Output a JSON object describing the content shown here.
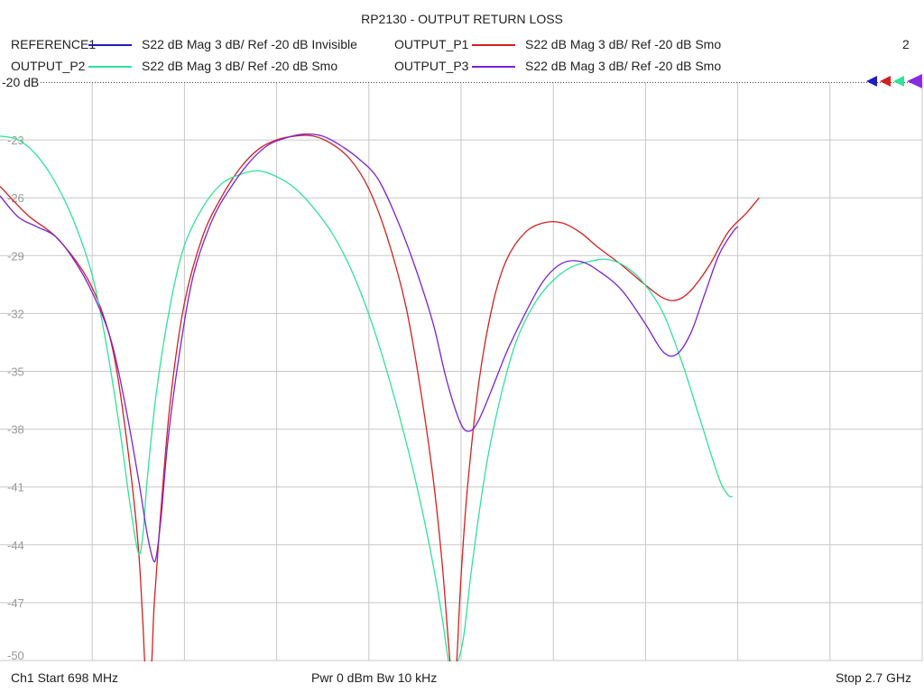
{
  "chart_data": {
    "type": "line",
    "title": "RP2130 - OUTPUT RETURN LOSS",
    "xlabel": "",
    "ylabel": "",
    "x_range_ghz": [
      0.698,
      2.7
    ],
    "ylim": [
      -50,
      -20
    ],
    "yticks": [
      -20,
      -23,
      -26,
      -29,
      -32,
      -35,
      -38,
      -41,
      -44,
      -47,
      -50
    ],
    "ref_label": "-20 dB",
    "grid": true,
    "x_divisions": 10,
    "channel_number": "2",
    "legend": [
      {
        "name": "REFERENCE1",
        "desc": "S22  dB Mag  3 dB/ Ref -20 dB  Invisible",
        "color": "#1f1fbf"
      },
      {
        "name": "OUTPUT_P1",
        "desc": "S22  dB Mag  3 dB/ Ref -20 dB  Smo",
        "color": "#d42020"
      },
      {
        "name": "OUTPUT_P2",
        "desc": "S22  dB Mag  3 dB/ Ref -20 dB  Smo",
        "color": "#2ee39a"
      },
      {
        "name": "OUTPUT_P3",
        "desc": "S22  dB Mag  3 dB/ Ref -20 dB  Smo",
        "color": "#7b22d6"
      }
    ],
    "series": [
      {
        "name": "OUTPUT_P1",
        "color": "#d42020",
        "points": [
          [
            0.698,
            -25.4
          ],
          [
            0.758,
            -26.9
          ],
          [
            0.818,
            -28.0
          ],
          [
            0.878,
            -29.8
          ],
          [
            0.918,
            -31.8
          ],
          [
            0.948,
            -34.5
          ],
          [
            0.978,
            -39.5
          ],
          [
            0.998,
            -44.0
          ],
          [
            1.008,
            -48.0
          ],
          [
            1.014,
            -50.5
          ],
          [
            1.026,
            -50.5
          ],
          [
            1.033,
            -47.0
          ],
          [
            1.048,
            -42.0
          ],
          [
            1.068,
            -36.5
          ],
          [
            1.098,
            -31.5
          ],
          [
            1.138,
            -28.0
          ],
          [
            1.178,
            -26.0
          ],
          [
            1.218,
            -24.5
          ],
          [
            1.258,
            -23.5
          ],
          [
            1.298,
            -23.0
          ],
          [
            1.338,
            -22.8
          ],
          [
            1.378,
            -22.8
          ],
          [
            1.418,
            -23.2
          ],
          [
            1.458,
            -24.0
          ],
          [
            1.498,
            -25.5
          ],
          [
            1.538,
            -28.0
          ],
          [
            1.578,
            -31.5
          ],
          [
            1.608,
            -35.5
          ],
          [
            1.638,
            -40.5
          ],
          [
            1.658,
            -45.0
          ],
          [
            1.673,
            -49.5
          ],
          [
            1.678,
            -50.5
          ],
          [
            1.688,
            -50.5
          ],
          [
            1.698,
            -46.0
          ],
          [
            1.713,
            -41.0
          ],
          [
            1.738,
            -35.5
          ],
          [
            1.768,
            -31.5
          ],
          [
            1.798,
            -29.2
          ],
          [
            1.838,
            -27.8
          ],
          [
            1.878,
            -27.3
          ],
          [
            1.918,
            -27.3
          ],
          [
            1.958,
            -27.8
          ],
          [
            1.998,
            -28.6
          ],
          [
            2.048,
            -29.5
          ],
          [
            2.098,
            -30.5
          ],
          [
            2.138,
            -31.2
          ],
          [
            2.168,
            -31.3
          ],
          [
            2.198,
            -30.8
          ],
          [
            2.238,
            -29.5
          ],
          [
            2.278,
            -27.8
          ],
          [
            2.318,
            -26.8
          ],
          [
            2.346,
            -26.0
          ]
        ]
      },
      {
        "name": "OUTPUT_P2",
        "color": "#2ee39a",
        "points": [
          [
            0.698,
            -22.8
          ],
          [
            0.738,
            -23.0
          ],
          [
            0.778,
            -23.8
          ],
          [
            0.818,
            -25.2
          ],
          [
            0.858,
            -27.2
          ],
          [
            0.898,
            -30.0
          ],
          [
            0.928,
            -33.5
          ],
          [
            0.958,
            -38.0
          ],
          [
            0.978,
            -41.5
          ],
          [
            0.998,
            -44.4
          ],
          [
            1.008,
            -43.5
          ],
          [
            1.018,
            -40.5
          ],
          [
            1.038,
            -36.0
          ],
          [
            1.068,
            -31.5
          ],
          [
            1.098,
            -28.5
          ],
          [
            1.138,
            -26.5
          ],
          [
            1.178,
            -25.3
          ],
          [
            1.218,
            -24.8
          ],
          [
            1.258,
            -24.6
          ],
          [
            1.298,
            -24.9
          ],
          [
            1.338,
            -25.5
          ],
          [
            1.378,
            -26.5
          ],
          [
            1.418,
            -27.8
          ],
          [
            1.458,
            -29.6
          ],
          [
            1.498,
            -32.0
          ],
          [
            1.538,
            -35.0
          ],
          [
            1.578,
            -38.5
          ],
          [
            1.608,
            -41.5
          ],
          [
            1.638,
            -45.0
          ],
          [
            1.658,
            -47.8
          ],
          [
            1.673,
            -50.2
          ],
          [
            1.683,
            -50.5
          ],
          [
            1.703,
            -49.0
          ],
          [
            1.723,
            -45.0
          ],
          [
            1.753,
            -40.0
          ],
          [
            1.783,
            -36.5
          ],
          [
            1.818,
            -33.5
          ],
          [
            1.858,
            -31.5
          ],
          [
            1.898,
            -30.3
          ],
          [
            1.938,
            -29.6
          ],
          [
            1.978,
            -29.3
          ],
          [
            2.018,
            -29.2
          ],
          [
            2.058,
            -29.6
          ],
          [
            2.098,
            -30.5
          ],
          [
            2.138,
            -32.0
          ],
          [
            2.178,
            -34.5
          ],
          [
            2.218,
            -37.5
          ],
          [
            2.258,
            -40.5
          ],
          [
            2.278,
            -41.4
          ],
          [
            2.288,
            -41.5
          ]
        ]
      },
      {
        "name": "OUTPUT_P3",
        "color": "#7b22d6",
        "points": [
          [
            0.698,
            -25.9
          ],
          [
            0.738,
            -27.0
          ],
          [
            0.778,
            -27.5
          ],
          [
            0.818,
            -28.0
          ],
          [
            0.858,
            -29.2
          ],
          [
            0.898,
            -30.9
          ],
          [
            0.938,
            -33.3
          ],
          [
            0.968,
            -36.5
          ],
          [
            0.998,
            -40.5
          ],
          [
            1.018,
            -43.5
          ],
          [
            1.031,
            -44.8
          ],
          [
            1.038,
            -44.5
          ],
          [
            1.048,
            -42.5
          ],
          [
            1.063,
            -38.5
          ],
          [
            1.088,
            -34.0
          ],
          [
            1.118,
            -30.0
          ],
          [
            1.158,
            -27.2
          ],
          [
            1.198,
            -25.5
          ],
          [
            1.238,
            -24.2
          ],
          [
            1.278,
            -23.3
          ],
          [
            1.318,
            -22.9
          ],
          [
            1.358,
            -22.7
          ],
          [
            1.398,
            -22.8
          ],
          [
            1.438,
            -23.3
          ],
          [
            1.478,
            -24.0
          ],
          [
            1.518,
            -25.0
          ],
          [
            1.558,
            -27.0
          ],
          [
            1.598,
            -29.5
          ],
          [
            1.638,
            -32.5
          ],
          [
            1.668,
            -35.5
          ],
          [
            1.698,
            -37.7
          ],
          [
            1.718,
            -38.1
          ],
          [
            1.738,
            -37.5
          ],
          [
            1.768,
            -35.8
          ],
          [
            1.798,
            -34.0
          ],
          [
            1.838,
            -32.0
          ],
          [
            1.878,
            -30.3
          ],
          [
            1.918,
            -29.4
          ],
          [
            1.958,
            -29.3
          ],
          [
            1.998,
            -29.8
          ],
          [
            2.048,
            -30.8
          ],
          [
            2.098,
            -32.5
          ],
          [
            2.138,
            -34.0
          ],
          [
            2.168,
            -34.1
          ],
          [
            2.198,
            -33.0
          ],
          [
            2.228,
            -31.0
          ],
          [
            2.258,
            -29.0
          ],
          [
            2.288,
            -27.8
          ],
          [
            2.3,
            -27.5
          ]
        ]
      }
    ]
  },
  "footer": {
    "left": "Ch1  Start  698 MHz",
    "center": "Pwr  0 dBm  Bw  10 kHz",
    "right": "Stop  2.7 GHz"
  }
}
